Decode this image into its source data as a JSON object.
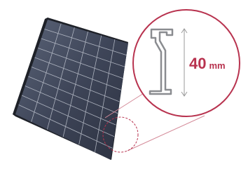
{
  "callout": {
    "value": "40",
    "unit": "mm"
  }
}
